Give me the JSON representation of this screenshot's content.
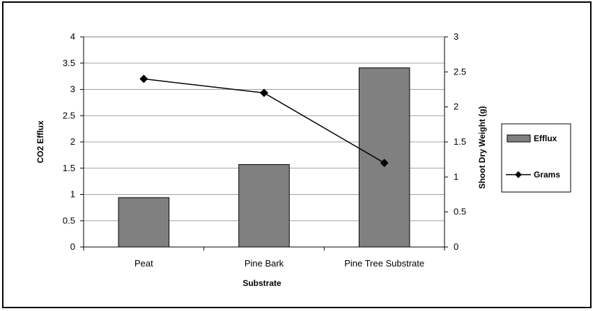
{
  "chart_data": {
    "type": "bar",
    "categories": [
      "Peat",
      "Pine Bark",
      "Pine Tree Substrate"
    ],
    "xlabel": "Substrate",
    "ylabel": "CO2 Efflux",
    "y2label": "Shoot Dry Weight (g)",
    "ylim": [
      0,
      4
    ],
    "y2lim": [
      0,
      3
    ],
    "yticks": [
      "0",
      "0.5",
      "1",
      "1.5",
      "2",
      "2.5",
      "3",
      "3.5",
      "4"
    ],
    "y2ticks": [
      "0",
      "0.5",
      "1",
      "1.5",
      "2",
      "2.5",
      "3"
    ],
    "grid": true,
    "legend_position": "right",
    "series": [
      {
        "name": "Efflux",
        "type": "bar",
        "axis": "left",
        "values": [
          0.94,
          1.57,
          3.41
        ],
        "color": "#808080"
      },
      {
        "name": "Grams",
        "type": "line",
        "axis": "right",
        "values": [
          2.4,
          2.2,
          1.2
        ],
        "color": "#000000",
        "marker": "diamond"
      }
    ]
  }
}
